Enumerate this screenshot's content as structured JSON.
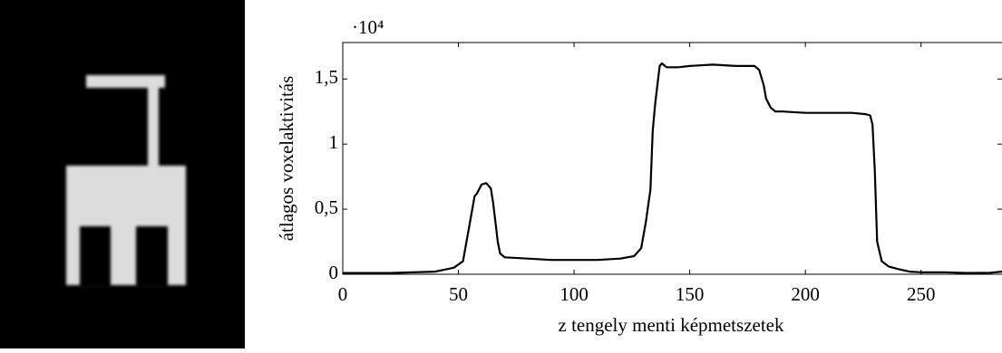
{
  "chart_data": {
    "type": "line",
    "y_label": "átlagos voxelaktivitás",
    "x_label": "z tengely menti képmetszetek",
    "y_multiplier": "·10⁴",
    "xlim": [
      0,
      285
    ],
    "xticks": [
      0,
      50,
      100,
      150,
      200,
      250
    ],
    "ylim": [
      0,
      1.78
    ],
    "yticks": [
      0,
      {
        "value": 0.5,
        "label": "0,5"
      },
      1,
      {
        "value": 1.5,
        "label": "1,5"
      }
    ],
    "grid": false,
    "series": [
      {
        "color": "#000000",
        "x": [
          0,
          20,
          40,
          48,
          52,
          55,
          57,
          58,
          60,
          62,
          64,
          65,
          66,
          67,
          68,
          70,
          80,
          90,
          100,
          110,
          120,
          126,
          129,
          131,
          133,
          134,
          135,
          136,
          137,
          138,
          140,
          145,
          150,
          160,
          170,
          178,
          180,
          182,
          183,
          185,
          187,
          190,
          200,
          210,
          220,
          226,
          228,
          229,
          230,
          231,
          233,
          236,
          240,
          245,
          250,
          260,
          270,
          280,
          285
        ],
        "values": [
          0.01,
          0.01,
          0.02,
          0.05,
          0.1,
          0.4,
          0.6,
          0.62,
          0.69,
          0.7,
          0.66,
          0.55,
          0.4,
          0.25,
          0.16,
          0.13,
          0.12,
          0.11,
          0.11,
          0.11,
          0.12,
          0.14,
          0.2,
          0.4,
          0.65,
          1.1,
          1.3,
          1.45,
          1.6,
          1.62,
          1.59,
          1.59,
          1.6,
          1.61,
          1.6,
          1.6,
          1.57,
          1.45,
          1.35,
          1.28,
          1.25,
          1.25,
          1.24,
          1.24,
          1.24,
          1.23,
          1.22,
          1.15,
          0.8,
          0.25,
          0.1,
          0.06,
          0.04,
          0.02,
          0.015,
          0.015,
          0.01,
          0.012,
          0.02
        ]
      }
    ]
  }
}
